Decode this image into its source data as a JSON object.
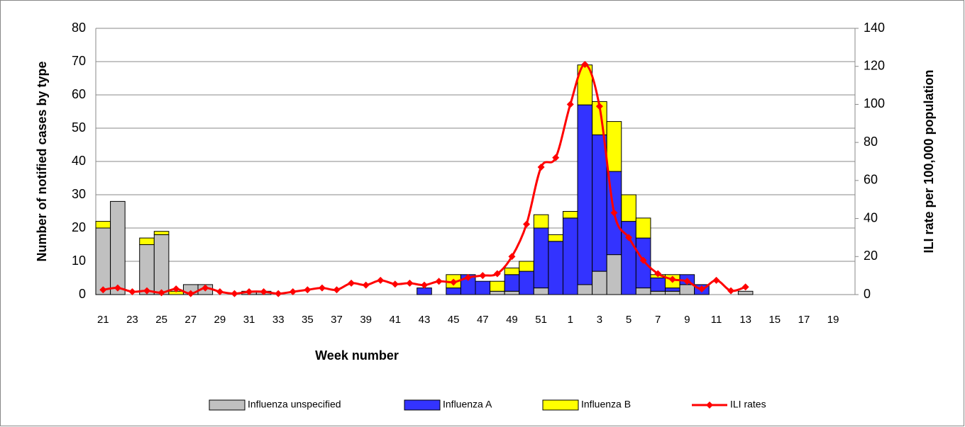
{
  "chart_data": {
    "type": "bar",
    "stacked": true,
    "x_label": "Week number",
    "y_label": "Number of notified cases by type",
    "y2_label": "ILI rate per 100,000 population",
    "categories": [
      "21",
      null,
      "23",
      null,
      "25",
      null,
      "27",
      null,
      "29",
      null,
      "31",
      null,
      "33",
      null,
      "35",
      null,
      "37",
      null,
      "39",
      null,
      "41",
      null,
      "43",
      null,
      "45",
      null,
      "47",
      null,
      "49",
      null,
      "51",
      null,
      "1",
      null,
      "3",
      null,
      "5",
      null,
      "7",
      null,
      "9",
      null,
      "11",
      null,
      "13",
      null,
      "15",
      null,
      "17",
      null,
      "19",
      null
    ],
    "series": [
      {
        "name": "Influenza unspecified",
        "color": "#c0c0c0",
        "type": "bar",
        "values": [
          20,
          28,
          0,
          15,
          18,
          0,
          3,
          3,
          0,
          0,
          1,
          1,
          0,
          0,
          0,
          0,
          0,
          0,
          0,
          0,
          0,
          0,
          0,
          0,
          0,
          0,
          0,
          1,
          1,
          0,
          2,
          0,
          0,
          3,
          7,
          12,
          0,
          2,
          1,
          1,
          3,
          0,
          0,
          0,
          1,
          0,
          0,
          0,
          0,
          0,
          0,
          0
        ]
      },
      {
        "name": "Influenza A",
        "color": "#3333ff",
        "type": "bar",
        "values": [
          0,
          0,
          0,
          0,
          0,
          0,
          0,
          0,
          0,
          0,
          0,
          0,
          0,
          0,
          0,
          0,
          0,
          0,
          0,
          0,
          0,
          0,
          2,
          0,
          2,
          6,
          4,
          0,
          5,
          7,
          18,
          16,
          23,
          54,
          41,
          25,
          22,
          15,
          4,
          1,
          3,
          3,
          0,
          0,
          0,
          0,
          0,
          0,
          0,
          0,
          0,
          0
        ]
      },
      {
        "name": "Influenza B",
        "color": "#ffff00",
        "type": "bar",
        "values": [
          2,
          0,
          0,
          2,
          1,
          1,
          0,
          0,
          0,
          0,
          0,
          0,
          0,
          0,
          0,
          0,
          0,
          0,
          0,
          0,
          0,
          0,
          0,
          0,
          4,
          0,
          0,
          3,
          2,
          3,
          4,
          2,
          2,
          12,
          10,
          15,
          8,
          6,
          1,
          4,
          0,
          0,
          0,
          0,
          0,
          0,
          0,
          0,
          0,
          0,
          0,
          0
        ]
      },
      {
        "name": "ILI rates",
        "color": "#ff0000",
        "type": "line",
        "axis": "y2",
        "values": [
          2.5,
          3.5,
          1.5,
          2,
          1,
          3,
          0.5,
          3.5,
          1.5,
          0.5,
          1.5,
          1.5,
          0.5,
          1.5,
          2.5,
          3.5,
          2.5,
          6,
          5,
          7.5,
          5.5,
          6,
          5,
          7,
          6.5,
          9,
          10,
          11,
          20,
          37,
          67,
          72,
          100,
          121,
          99,
          43,
          30,
          18,
          11,
          8,
          7,
          3,
          7.5,
          2,
          4,
          null,
          null,
          null,
          null,
          null,
          null,
          null
        ]
      }
    ],
    "ylim": [
      0,
      80
    ],
    "yticks": [
      0,
      10,
      20,
      30,
      40,
      50,
      60,
      70,
      80
    ],
    "y2lim": [
      0,
      140
    ],
    "y2ticks": [
      0,
      20,
      40,
      60,
      80,
      100,
      120,
      140
    ],
    "grid": true,
    "legend": "bottom"
  }
}
